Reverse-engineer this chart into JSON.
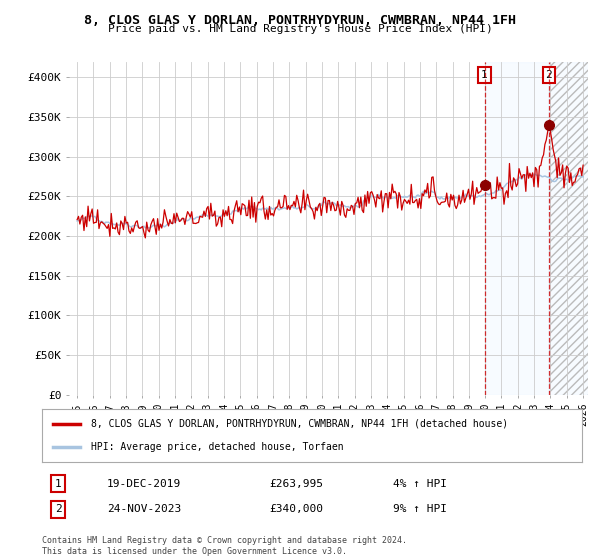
{
  "title": "8, CLOS GLAS Y DORLAN, PONTRHYDYRUN, CWMBRAN, NP44 1FH",
  "subtitle": "Price paid vs. HM Land Registry's House Price Index (HPI)",
  "ylim": [
    0,
    420000
  ],
  "yticks": [
    0,
    50000,
    100000,
    150000,
    200000,
    250000,
    300000,
    350000,
    400000
  ],
  "ytick_labels": [
    "£0",
    "£50K",
    "£100K",
    "£150K",
    "£200K",
    "£250K",
    "£300K",
    "£350K",
    "£400K"
  ],
  "start_year": 1995,
  "end_year": 2026,
  "marker1_date": 2019.96,
  "marker1_value": 263995,
  "marker1_label": "1",
  "marker1_text": "19-DEC-2019",
  "marker1_price": "£263,995",
  "marker1_hpi": "4% ↑ HPI",
  "marker2_date": 2023.9,
  "marker2_value": 340000,
  "marker2_label": "2",
  "marker2_text": "24-NOV-2023",
  "marker2_price": "£340,000",
  "marker2_hpi": "9% ↑ HPI",
  "hpi_line_color": "#a8c4e0",
  "price_line_color": "#cc0000",
  "marker_color": "#8b0000",
  "grid_color": "#cccccc",
  "bg_color": "#ffffff",
  "shaded_color": "#ddeeff",
  "legend_label_red": "8, CLOS GLAS Y DORLAN, PONTRHYDYRUN, CWMBRAN, NP44 1FH (detached house)",
  "legend_label_blue": "HPI: Average price, detached house, Torfaen",
  "footer": "Contains HM Land Registry data © Crown copyright and database right 2024.\nThis data is licensed under the Open Government Licence v3.0."
}
